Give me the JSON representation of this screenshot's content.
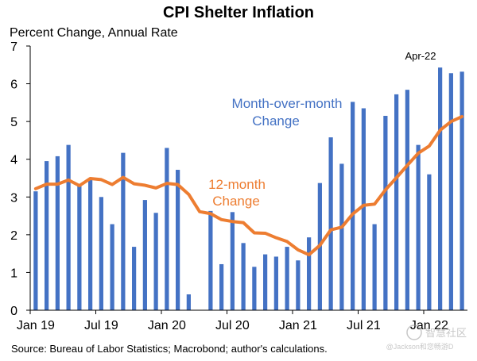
{
  "chart_data": {
    "type": "bar",
    "title": "CPI Shelter Inflation",
    "ylabel": "Percent Change, Annual Rate",
    "ylim": [
      0,
      7
    ],
    "yticks": [
      0,
      1,
      2,
      3,
      4,
      5,
      6,
      7
    ],
    "grid": false,
    "source": "Source: Bureau of Labor Statistics; Macrobond; author's calculations.",
    "categories": [
      "2019-01",
      "2019-02",
      "2019-03",
      "2019-04",
      "2019-05",
      "2019-06",
      "2019-07",
      "2019-08",
      "2019-09",
      "2019-10",
      "2019-11",
      "2019-12",
      "2020-01",
      "2020-02",
      "2020-03",
      "2020-04",
      "2020-05",
      "2020-06",
      "2020-07",
      "2020-08",
      "2020-09",
      "2020-10",
      "2020-11",
      "2020-12",
      "2021-01",
      "2021-02",
      "2021-03",
      "2021-04",
      "2021-05",
      "2021-06",
      "2021-07",
      "2021-08",
      "2021-09",
      "2021-10",
      "2021-11",
      "2021-12",
      "2022-01",
      "2022-02",
      "2022-03",
      "2022-04"
    ],
    "x_tick_labels": [
      {
        "label": "Jan 19",
        "category": "2019-01"
      },
      {
        "label": "Jul 19",
        "category": "2019-07"
      },
      {
        "label": "Jan 20",
        "category": "2020-01"
      },
      {
        "label": "Jul 20",
        "category": "2020-07"
      },
      {
        "label": "Jan 21",
        "category": "2021-01"
      },
      {
        "label": "Jul 21",
        "category": "2021-07"
      },
      {
        "label": "Jan 22",
        "category": "2022-01"
      }
    ],
    "series": [
      {
        "type": "bar",
        "color": "#4472C4",
        "values": [
          3.15,
          3.95,
          4.08,
          4.38,
          3.3,
          3.45,
          3.0,
          2.28,
          4.17,
          1.68,
          2.92,
          2.58,
          4.3,
          3.72,
          0.42,
          null,
          2.63,
          1.22,
          2.6,
          1.78,
          1.15,
          1.48,
          1.42,
          1.68,
          1.32,
          1.93,
          3.37,
          4.58,
          3.88,
          5.52,
          5.35,
          2.28,
          5.15,
          5.72,
          5.84,
          4.38,
          3.6,
          6.43,
          6.28,
          6.32
        ]
      },
      {
        "type": "line",
        "color": "#ED7D31",
        "values": [
          3.22,
          3.34,
          3.34,
          3.45,
          3.3,
          3.49,
          3.46,
          3.33,
          3.52,
          3.35,
          3.31,
          3.24,
          3.36,
          3.33,
          3.07,
          2.61,
          2.56,
          2.4,
          2.35,
          2.32,
          2.05,
          2.04,
          1.92,
          1.82,
          1.6,
          1.47,
          1.72,
          2.13,
          2.2,
          2.55,
          2.78,
          2.81,
          3.19,
          3.51,
          3.84,
          4.16,
          4.35,
          4.77,
          5.0,
          5.13
        ]
      }
    ],
    "annotations": {
      "bar_label_line1": "Month-over-month",
      "bar_label_line2": "Change",
      "line_label_line1": "12-month",
      "line_label_line2": "Change",
      "latest_label": "Apr-22",
      "watermark_line1": "智慧社区",
      "watermark_line2": "@Jackson和您畅游D"
    }
  }
}
